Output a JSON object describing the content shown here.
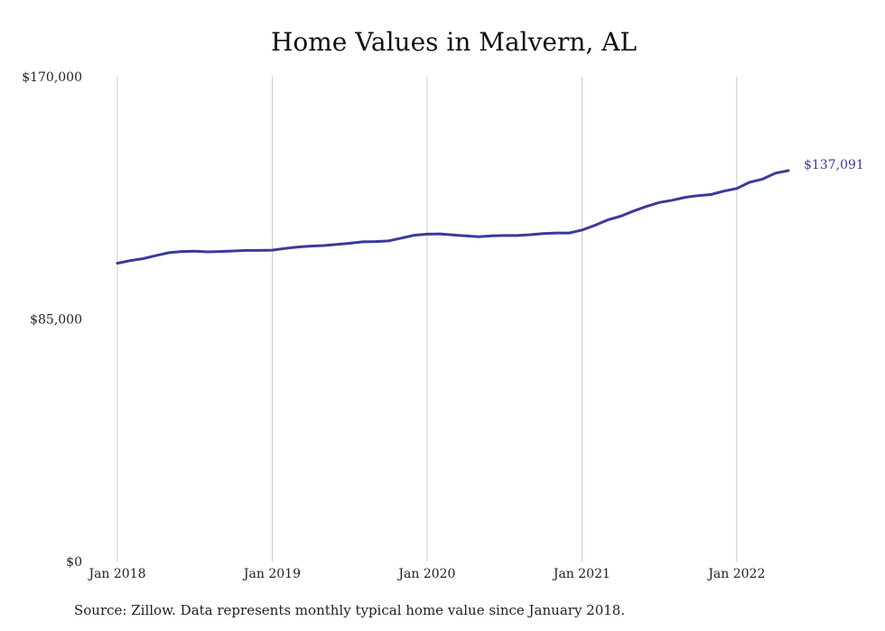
{
  "chart_data": {
    "type": "line",
    "title": "Home Values in Malvern, AL",
    "source": "Source: Zillow. Data represents monthly typical home value since January 2018.",
    "ylim": [
      0,
      170000
    ],
    "y_ticks": [
      {
        "value": 0,
        "label": "$0"
      },
      {
        "value": 85000,
        "label": "$85,000"
      },
      {
        "value": 170000,
        "label": "$170,000"
      }
    ],
    "x_ticks": [
      {
        "value": "2018-01",
        "label": "Jan 2018"
      },
      {
        "value": "2019-01",
        "label": "Jan 2019"
      },
      {
        "value": "2020-01",
        "label": "Jan 2020"
      },
      {
        "value": "2021-01",
        "label": "Jan 2021"
      },
      {
        "value": "2022-01",
        "label": "Jan 2022"
      }
    ],
    "grid": "vertical",
    "line_color": "#3b3a9a",
    "end_label": "$137,091",
    "series": [
      {
        "x": [
          "2018-01",
          "2018-02",
          "2018-03",
          "2018-04",
          "2018-05",
          "2018-06",
          "2018-07",
          "2018-08",
          "2018-09",
          "2018-10",
          "2018-11",
          "2018-12",
          "2019-01",
          "2019-02",
          "2019-03",
          "2019-04",
          "2019-05",
          "2019-06",
          "2019-07",
          "2019-08",
          "2019-09",
          "2019-10",
          "2019-11",
          "2019-12",
          "2020-01",
          "2020-02",
          "2020-03",
          "2020-04",
          "2020-05",
          "2020-06",
          "2020-07",
          "2020-08",
          "2020-09",
          "2020-10",
          "2020-11",
          "2020-12",
          "2021-01",
          "2021-02",
          "2021-03",
          "2021-04",
          "2021-05",
          "2021-06",
          "2021-07",
          "2021-08",
          "2021-09",
          "2021-10",
          "2021-11",
          "2021-12",
          "2022-01",
          "2022-02",
          "2022-03",
          "2022-04",
          "2022-05"
        ],
        "values": [
          104600,
          105500,
          106200,
          107300,
          108300,
          108700,
          108800,
          108600,
          108700,
          108900,
          109100,
          109100,
          109200,
          109800,
          110300,
          110600,
          110800,
          111200,
          111600,
          112100,
          112200,
          112400,
          113400,
          114400,
          114800,
          114900,
          114500,
          114200,
          113900,
          114200,
          114300,
          114300,
          114600,
          115000,
          115200,
          115200,
          116200,
          117900,
          119800,
          121100,
          122900,
          124500,
          125900,
          126700,
          127700,
          128300,
          128700,
          129900,
          130800,
          133000,
          134100,
          136200,
          137091
        ]
      }
    ]
  }
}
